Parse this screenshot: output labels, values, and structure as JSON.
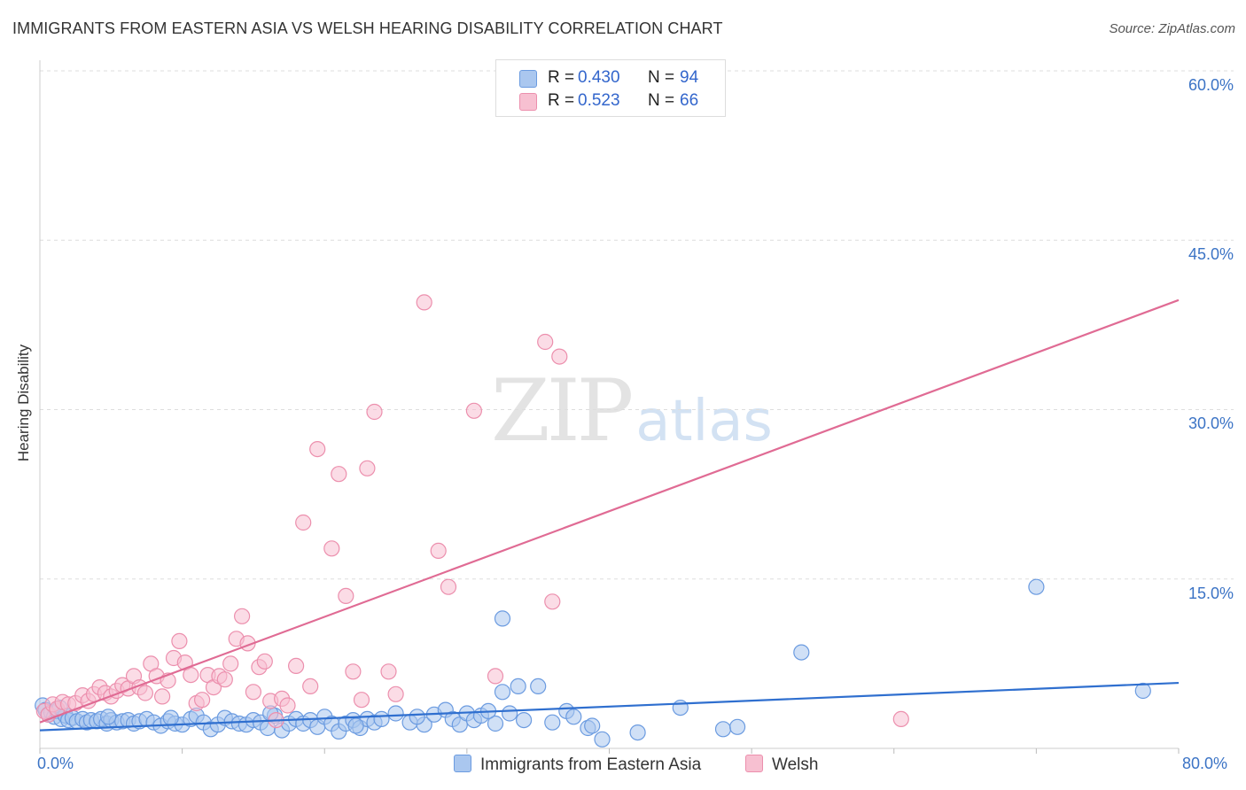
{
  "header": {
    "title": "IMMIGRANTS FROM EASTERN ASIA VS WELSH HEARING DISABILITY CORRELATION CHART",
    "source": "Source: ZipAtlas.com"
  },
  "watermark": {
    "zip": "ZIP",
    "atlas": "atlas"
  },
  "legend": {
    "rows": [
      {
        "r_label": "R =",
        "r_value": "0.430",
        "n_label": "N =",
        "n_value": "94",
        "color": "#aac7ef",
        "border": "#6b9be0"
      },
      {
        "r_label": "R =",
        "r_value": "0.523",
        "n_label": "N =",
        "n_value": "66",
        "color": "#f7c0d1",
        "border": "#ec8fad"
      }
    ]
  },
  "bottom_legend": {
    "items": [
      {
        "label": "Immigrants from Eastern Asia"
      },
      {
        "label": "Welsh"
      }
    ]
  },
  "chart_data": {
    "type": "scatter",
    "title": "IMMIGRANTS FROM EASTERN ASIA VS WELSH HEARING DISABILITY CORRELATION CHART",
    "xlabel": "",
    "ylabel": "Hearing Disability",
    "xlim": [
      0,
      80
    ],
    "ylim": [
      0,
      60
    ],
    "x_tick_labels": [
      "0.0%",
      "80.0%"
    ],
    "y_tick_labels": [
      "15.0%",
      "30.0%",
      "45.0%",
      "60.0%"
    ],
    "y_ticks": [
      15,
      30,
      45,
      60
    ],
    "grid": true,
    "series": [
      {
        "name": "Immigrants from Eastern Asia",
        "color": "#6b9be0",
        "fill": "#aac7ef",
        "line_color": "#2f6fcf",
        "trend": {
          "x0": 0,
          "y0": 1.6,
          "x1": 80,
          "y1": 5.8
        },
        "points": [
          [
            0.2,
            3.8
          ],
          [
            0.4,
            3.4
          ],
          [
            0.6,
            3.0
          ],
          [
            0.8,
            3.2
          ],
          [
            1.0,
            2.8
          ],
          [
            1.2,
            3.3
          ],
          [
            1.5,
            2.6
          ],
          [
            1.8,
            2.9
          ],
          [
            2.0,
            2.5
          ],
          [
            2.3,
            2.7
          ],
          [
            2.6,
            2.4
          ],
          [
            3.0,
            2.6
          ],
          [
            3.3,
            2.3
          ],
          [
            3.6,
            2.5
          ],
          [
            4.0,
            2.4
          ],
          [
            4.3,
            2.6
          ],
          [
            4.7,
            2.2
          ],
          [
            5.0,
            2.5
          ],
          [
            5.4,
            2.3
          ],
          [
            5.8,
            2.4
          ],
          [
            6.2,
            2.5
          ],
          [
            6.6,
            2.2
          ],
          [
            7.0,
            2.4
          ],
          [
            7.5,
            2.6
          ],
          [
            8.0,
            2.3
          ],
          [
            8.5,
            2.0
          ],
          [
            9.0,
            2.4
          ],
          [
            9.5,
            2.2
          ],
          [
            10.0,
            2.1
          ],
          [
            10.6,
            2.6
          ],
          [
            11.0,
            2.9
          ],
          [
            11.5,
            2.3
          ],
          [
            12.0,
            1.7
          ],
          [
            12.5,
            2.1
          ],
          [
            13.0,
            2.7
          ],
          [
            13.5,
            2.4
          ],
          [
            14.0,
            2.2
          ],
          [
            14.5,
            2.1
          ],
          [
            15.0,
            2.5
          ],
          [
            15.5,
            2.3
          ],
          [
            16.0,
            1.8
          ],
          [
            16.5,
            2.9
          ],
          [
            17.0,
            1.6
          ],
          [
            17.5,
            2.2
          ],
          [
            18.0,
            2.6
          ],
          [
            18.5,
            2.2
          ],
          [
            19.0,
            2.5
          ],
          [
            19.5,
            1.9
          ],
          [
            20.0,
            2.8
          ],
          [
            20.5,
            2.2
          ],
          [
            21.0,
            1.5
          ],
          [
            21.5,
            2.2
          ],
          [
            22.0,
            2.5
          ],
          [
            22.5,
            1.8
          ],
          [
            23.0,
            2.6
          ],
          [
            23.5,
            2.3
          ],
          [
            24.0,
            2.6
          ],
          [
            25.0,
            3.1
          ],
          [
            26.0,
            2.3
          ],
          [
            27.0,
            2.1
          ],
          [
            27.7,
            3.0
          ],
          [
            28.5,
            3.4
          ],
          [
            29.0,
            2.6
          ],
          [
            29.5,
            2.1
          ],
          [
            30.0,
            3.1
          ],
          [
            30.5,
            2.5
          ],
          [
            31.0,
            2.9
          ],
          [
            32.0,
            2.2
          ],
          [
            32.5,
            5.0
          ],
          [
            33.0,
            3.1
          ],
          [
            33.6,
            5.5
          ],
          [
            34.0,
            2.5
          ],
          [
            35.0,
            5.5
          ],
          [
            37.0,
            3.3
          ],
          [
            37.5,
            2.8
          ],
          [
            38.5,
            1.8
          ],
          [
            38.8,
            2.0
          ],
          [
            39.5,
            0.8
          ],
          [
            42.0,
            1.4
          ],
          [
            45.0,
            3.6
          ],
          [
            48.0,
            1.7
          ],
          [
            49.0,
            1.9
          ],
          [
            53.5,
            8.5
          ],
          [
            70.0,
            14.3
          ],
          [
            77.5,
            5.1
          ],
          [
            32.5,
            11.5
          ],
          [
            4.8,
            2.8
          ],
          [
            9.2,
            2.7
          ],
          [
            16.2,
            3.1
          ],
          [
            22.2,
            2.0
          ],
          [
            26.5,
            2.8
          ],
          [
            31.5,
            3.3
          ],
          [
            36.0,
            2.3
          ],
          [
            1.4,
            3.6
          ]
        ]
      },
      {
        "name": "Welsh",
        "color": "#ec8fad",
        "fill": "#f7c0d1",
        "line_color": "#e06b94",
        "trend": {
          "x0": 0,
          "y0": 2.3,
          "x1": 80,
          "y1": 39.7
        },
        "points": [
          [
            0.3,
            3.3
          ],
          [
            0.6,
            3.0
          ],
          [
            0.9,
            3.9
          ],
          [
            1.2,
            3.5
          ],
          [
            1.6,
            4.1
          ],
          [
            2.0,
            3.9
          ],
          [
            2.5,
            4.0
          ],
          [
            3.0,
            4.7
          ],
          [
            3.4,
            4.2
          ],
          [
            3.8,
            4.8
          ],
          [
            4.2,
            5.4
          ],
          [
            4.6,
            4.9
          ],
          [
            5.0,
            4.6
          ],
          [
            5.4,
            5.1
          ],
          [
            5.8,
            5.6
          ],
          [
            6.2,
            5.3
          ],
          [
            6.6,
            6.4
          ],
          [
            7.0,
            5.4
          ],
          [
            7.4,
            4.9
          ],
          [
            7.8,
            7.5
          ],
          [
            8.2,
            6.4
          ],
          [
            8.6,
            4.6
          ],
          [
            9.0,
            6.0
          ],
          [
            9.4,
            8.0
          ],
          [
            9.8,
            9.5
          ],
          [
            10.2,
            7.6
          ],
          [
            10.6,
            6.5
          ],
          [
            11.0,
            4.0
          ],
          [
            11.4,
            4.3
          ],
          [
            11.8,
            6.5
          ],
          [
            12.2,
            5.4
          ],
          [
            12.6,
            6.4
          ],
          [
            13.0,
            6.1
          ],
          [
            13.4,
            7.5
          ],
          [
            13.8,
            9.7
          ],
          [
            14.2,
            11.7
          ],
          [
            14.6,
            9.3
          ],
          [
            15.0,
            5.0
          ],
          [
            15.4,
            7.2
          ],
          [
            15.8,
            7.7
          ],
          [
            16.2,
            4.2
          ],
          [
            16.6,
            2.5
          ],
          [
            17.0,
            4.4
          ],
          [
            17.4,
            3.8
          ],
          [
            18.0,
            7.3
          ],
          [
            18.5,
            20.0
          ],
          [
            19.0,
            5.5
          ],
          [
            19.5,
            26.5
          ],
          [
            20.5,
            17.7
          ],
          [
            21.0,
            24.3
          ],
          [
            21.5,
            13.5
          ],
          [
            22.0,
            6.8
          ],
          [
            22.6,
            4.3
          ],
          [
            23.0,
            24.8
          ],
          [
            23.5,
            29.8
          ],
          [
            24.5,
            6.8
          ],
          [
            25.0,
            4.8
          ],
          [
            27.0,
            39.5
          ],
          [
            28.0,
            17.5
          ],
          [
            28.7,
            14.3
          ],
          [
            30.5,
            29.9
          ],
          [
            32.0,
            6.4
          ],
          [
            35.5,
            36.0
          ],
          [
            36.5,
            34.7
          ],
          [
            36.0,
            13.0
          ],
          [
            60.5,
            2.6
          ]
        ]
      }
    ]
  }
}
